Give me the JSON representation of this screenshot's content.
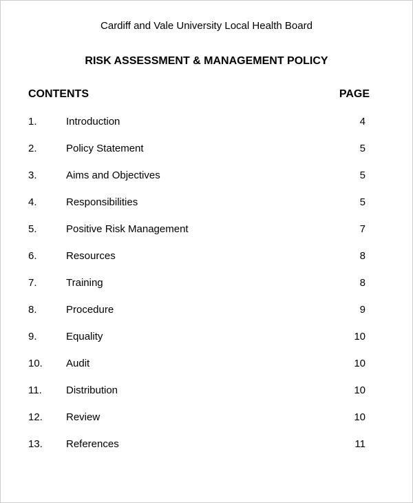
{
  "organization": "Cardiff and Vale University Local Health Board",
  "title": "RISK ASSESSMENT & MANAGEMENT POLICY",
  "toc": {
    "heading_left": "CONTENTS",
    "heading_right": "PAGE",
    "items": [
      {
        "num": "1.",
        "label": "Introduction",
        "page": "4"
      },
      {
        "num": "2.",
        "label": "Policy Statement",
        "page": "5"
      },
      {
        "num": "3.",
        "label": "Aims and Objectives",
        "page": "5"
      },
      {
        "num": "4.",
        "label": "Responsibilities",
        "page": "5"
      },
      {
        "num": "5.",
        "label": "Positive Risk Management",
        "page": "7"
      },
      {
        "num": "6.",
        "label": "Resources",
        "page": "8"
      },
      {
        "num": "7.",
        "label": "Training",
        "page": "8"
      },
      {
        "num": "8.",
        "label": "Procedure",
        "page": "9"
      },
      {
        "num": "9.",
        "label": "Equality",
        "page": "10"
      },
      {
        "num": "10.",
        "label": "Audit",
        "page": "10"
      },
      {
        "num": "11.",
        "label": "Distribution",
        "page": "10"
      },
      {
        "num": "12.",
        "label": "Review",
        "page": "10"
      },
      {
        "num": "13.",
        "label": "References",
        "page": "11"
      }
    ]
  },
  "style": {
    "background_color": "#ffffff",
    "text_color": "#000000",
    "border_color": "#cccccc",
    "font_family": "Arial",
    "org_fontsize": 15,
    "title_fontsize": 16,
    "body_fontsize": 15,
    "row_spacing": 22
  }
}
